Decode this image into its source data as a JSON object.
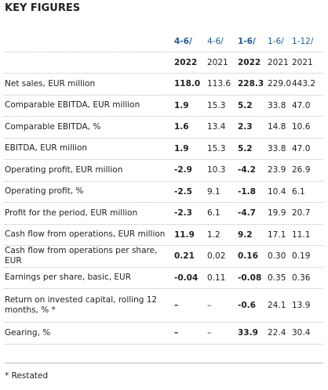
{
  "header": {
    "title": "KEY FIGURES"
  },
  "table": {
    "period_headers": [
      "4-6/",
      "4-6/",
      "1-6/",
      "1-6/",
      "1-12/"
    ],
    "year_headers": [
      "2022",
      "2021",
      "2022",
      "2021",
      "2021"
    ],
    "rows": [
      [
        "Net sales, EUR million",
        "118.0",
        "113.6",
        "228.3",
        "229.0",
        "443.2"
      ],
      [
        "Comparable EBITDA, EUR million",
        "1.9",
        "15.3",
        "5.2",
        "33.8",
        "47.0"
      ],
      [
        "Comparable EBITDA, %",
        "1.6",
        "13.4",
        "2.3",
        "14.8",
        "10.6"
      ],
      [
        "EBITDA, EUR million",
        "1.9",
        "15.3",
        "5.2",
        "33.8",
        "47.0"
      ],
      [
        "Operating profit, EUR million",
        "-2.9",
        "10.3",
        "-4.2",
        "23.9",
        "26.9"
      ],
      [
        "Operating profit, %",
        "-2.5",
        "9.1",
        "-1.8",
        "10.4",
        "6.1"
      ],
      [
        "Profit for the period, EUR million",
        "-2.3",
        "6.1",
        "-4.7",
        "19.9",
        "20.7"
      ],
      [
        "Cash flow from operations, EUR million",
        "11.9",
        "1.2",
        "9.2",
        "17.1",
        "11.1"
      ],
      [
        "Cash flow from operations per share, EUR",
        "0.21",
        "0.02",
        "0.16",
        "0.30",
        "0.19"
      ],
      [
        "Earnings per share, basic, EUR",
        "-0.04",
        "0.11",
        "-0.08",
        "0.35",
        "0.36"
      ],
      [
        "Return on invested capital, rolling 12 months, % *",
        "–",
        "–",
        "-0.6",
        "24.1",
        "13.9"
      ],
      [
        "Gearing, %",
        "–",
        "–",
        "33.9",
        "22.4",
        "30.4"
      ]
    ]
  },
  "footnote": "* Restated"
}
